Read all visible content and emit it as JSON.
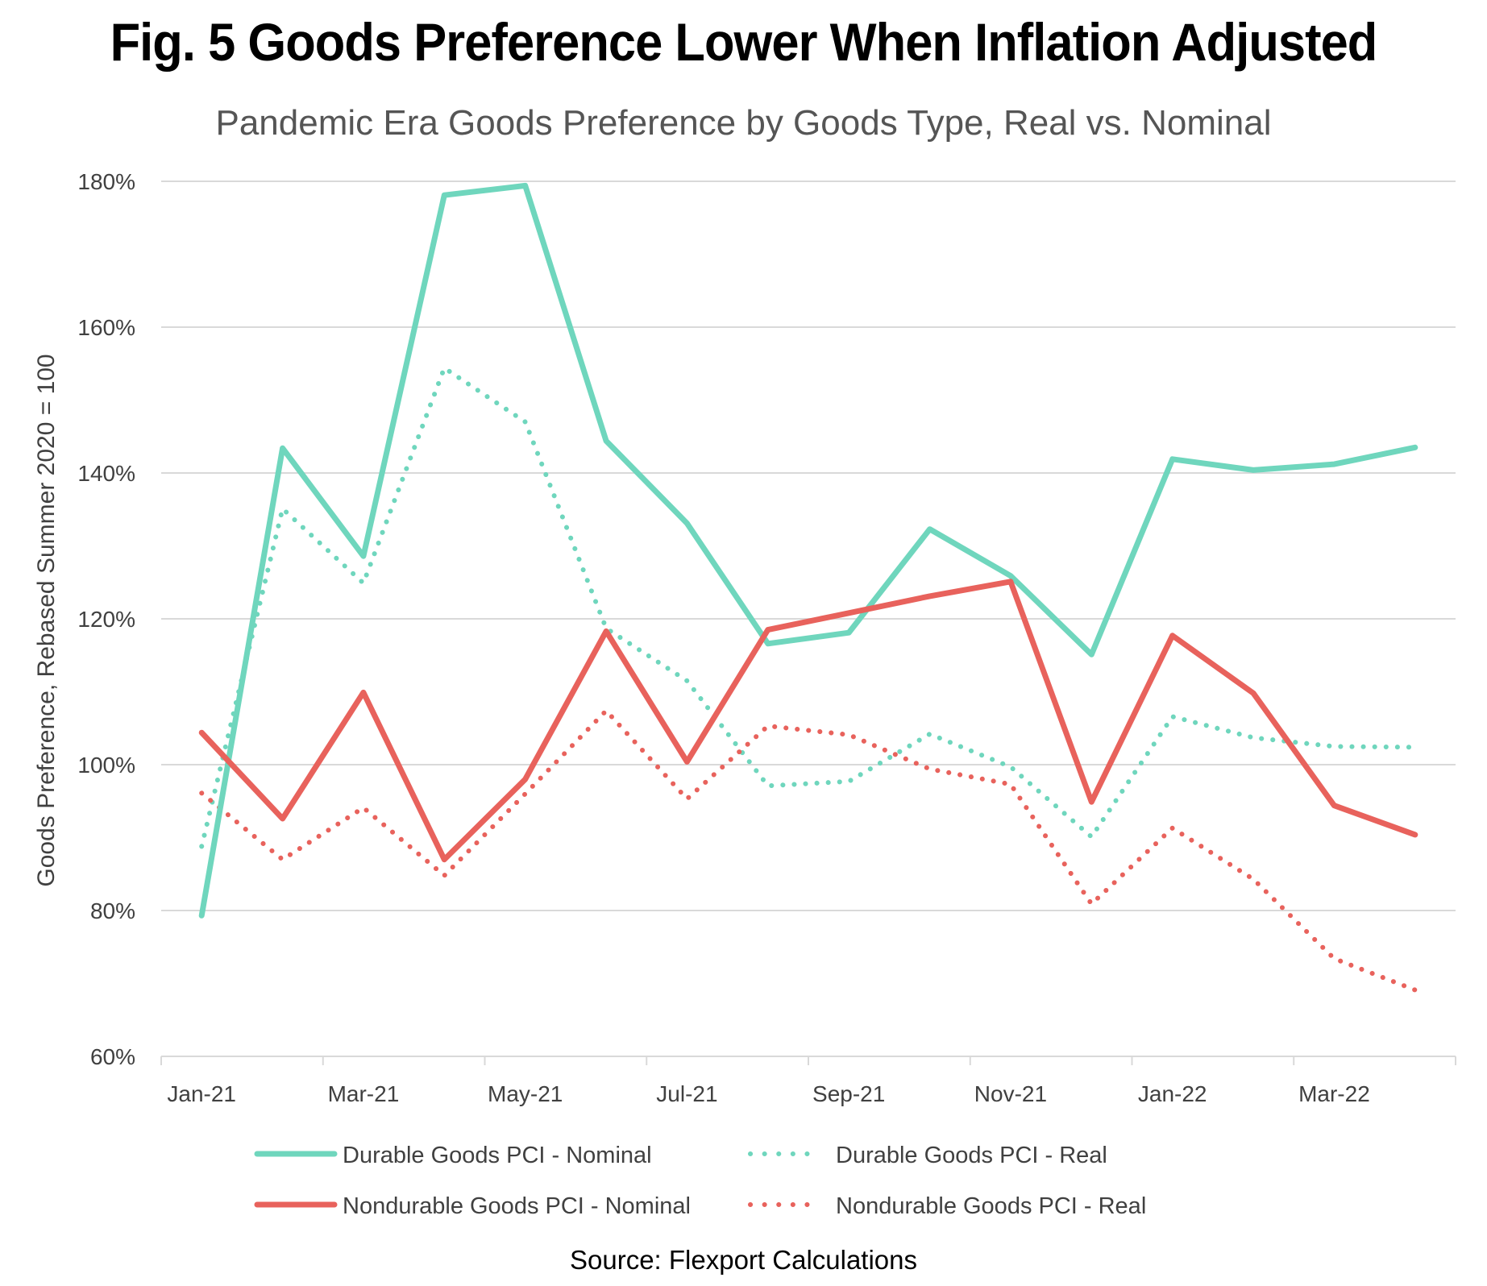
{
  "chart_data": {
    "type": "line",
    "title": "Fig. 5 Goods Preference Lower When Inflation Adjusted",
    "subtitle": "Pandemic Era Goods Preference by Goods Type, Real vs. Nominal",
    "xlabel": "",
    "ylabel": "Goods Preference, Rebased Summer 2020 = 100",
    "ylim": [
      60,
      180
    ],
    "y_ticks": [
      60,
      80,
      100,
      120,
      140,
      160,
      180
    ],
    "y_tick_labels": [
      "60%",
      "80%",
      "100%",
      "120%",
      "140%",
      "160%",
      "180%"
    ],
    "x": [
      "Jan-21",
      "Feb-21",
      "Mar-21",
      "Apr-21",
      "May-21",
      "Jun-21",
      "Jul-21",
      "Aug-21",
      "Sep-21",
      "Oct-21",
      "Nov-21",
      "Dec-21",
      "Jan-22",
      "Feb-22",
      "Mar-22",
      "Apr-22"
    ],
    "x_tick_labels": [
      "Jan-21",
      "Mar-21",
      "May-21",
      "Jul-21",
      "Sep-21",
      "Nov-21",
      "Jan-22",
      "Mar-22"
    ],
    "grid": true,
    "legend_position": "bottom",
    "series": [
      {
        "name": "Durable Goods PCI - Nominal",
        "color": "#6fd6bd",
        "style": "solid",
        "values": [
          79.3,
          143.4,
          128.6,
          178.1,
          179.4,
          144.4,
          133.1,
          116.6,
          118.1,
          132.3,
          125.9,
          115.1,
          141.9,
          140.4,
          141.2,
          143.5
        ]
      },
      {
        "name": "Durable Goods PCI - Real",
        "color": "#6fd6bd",
        "style": "dotted",
        "values": [
          88.8,
          135.1,
          124.9,
          154.4,
          147.0,
          118.7,
          111.5,
          97.1,
          97.7,
          104.2,
          99.7,
          90.1,
          106.6,
          103.7,
          102.5,
          102.4
        ]
      },
      {
        "name": "Nondurable Goods PCI - Nominal",
        "color": "#e8625c",
        "style": "solid",
        "values": [
          104.4,
          92.6,
          109.9,
          87.0,
          98.0,
          118.3,
          100.4,
          118.5,
          120.8,
          123.1,
          125.1,
          94.9,
          117.7,
          109.8,
          94.4,
          90.4
        ]
      },
      {
        "name": "Nondurable Goods PCI - Real",
        "color": "#e8625c",
        "style": "dotted",
        "values": [
          96.1,
          87.0,
          94.1,
          84.8,
          96.0,
          107.4,
          95.3,
          105.3,
          104.1,
          99.4,
          97.3,
          80.9,
          91.3,
          84.3,
          73.4,
          69.1
        ]
      }
    ],
    "source": "Source: Flexport Calculations"
  }
}
